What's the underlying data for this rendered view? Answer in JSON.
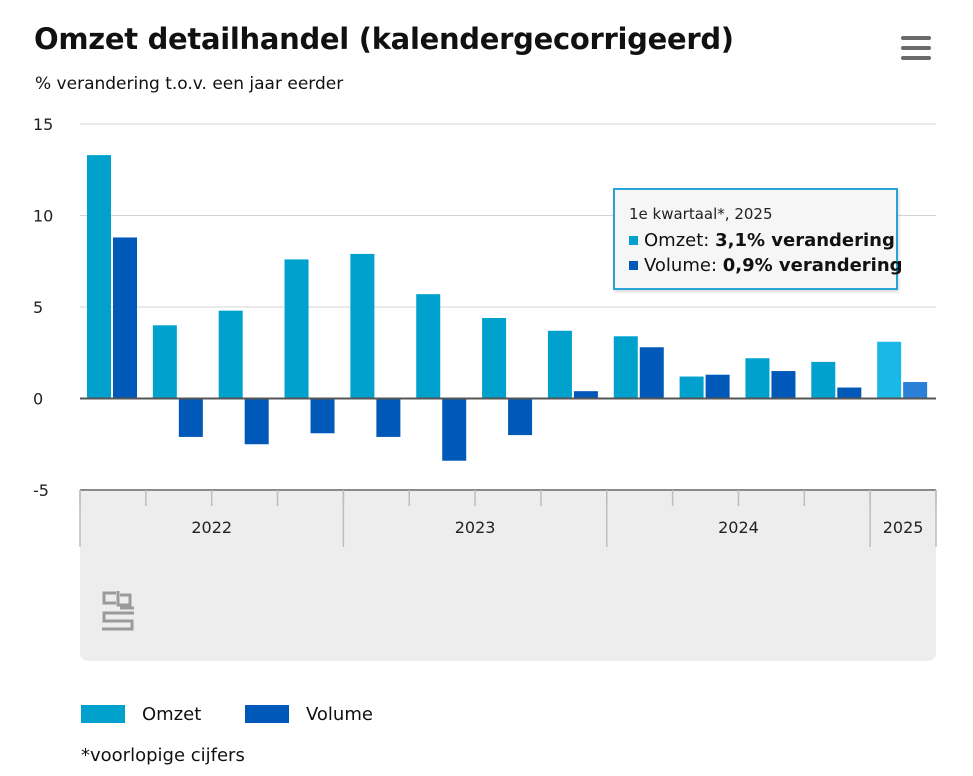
{
  "header": {
    "title": "Omzet detailhandel (kalendergecorrigeerd)",
    "subtitle": "% verandering t.o.v. een jaar eerder",
    "menu_icon": "hamburger-menu-icon"
  },
  "chart_data": {
    "type": "bar",
    "title": "Omzet detailhandel (kalendergecorrigeerd)",
    "ylabel": "% verandering t.o.v. een jaar eerder",
    "xlabel": "",
    "ylim": [
      -5,
      15
    ],
    "yticks": [
      15,
      10,
      5,
      0,
      -5
    ],
    "grid": true,
    "quarters": [
      "2022 Q1",
      "2022 Q2",
      "2022 Q3",
      "2022 Q4",
      "2023 Q1",
      "2023 Q2",
      "2023 Q3",
      "2023 Q4",
      "2024 Q1",
      "2024 Q2",
      "2024 Q3",
      "2024 Q4",
      "2025 Q1"
    ],
    "year_labels": [
      {
        "label": "2022",
        "quarters": 4
      },
      {
        "label": "2023",
        "quarters": 4
      },
      {
        "label": "2024",
        "quarters": 4
      },
      {
        "label": "2025",
        "quarters": 1
      }
    ],
    "series": [
      {
        "name": "Omzet",
        "color": "#00a1cd",
        "values": [
          13.3,
          4.0,
          4.8,
          7.6,
          7.9,
          5.7,
          4.4,
          3.7,
          3.4,
          1.2,
          2.2,
          2.0,
          3.1
        ]
      },
      {
        "name": "Volume",
        "color": "#0058b8",
        "values": [
          8.8,
          -2.1,
          -2.5,
          -1.9,
          -2.1,
          -3.4,
          -2.0,
          0.4,
          2.8,
          1.3,
          1.5,
          0.6,
          0.9
        ]
      }
    ],
    "highlight_index": 12,
    "highlight_colors": {
      "Omzet": "#1ab8e6",
      "Volume": "#2a7fd6"
    }
  },
  "tooltip": {
    "header": "1e kwartaal*, 2025",
    "rows": [
      {
        "label": "Omzet: ",
        "value": "3,1% verandering",
        "color": "#00a1cd"
      },
      {
        "label": "Volume: ",
        "value": "0,9% verandering",
        "color": "#0058b8"
      }
    ]
  },
  "logo": {
    "icon": "cbs-logo-icon"
  },
  "legend": {
    "items": [
      {
        "label": "Omzet",
        "color": "#00a1cd"
      },
      {
        "label": "Volume",
        "color": "#0058b8"
      }
    ]
  },
  "footnote": "*voorlopige cijfers"
}
